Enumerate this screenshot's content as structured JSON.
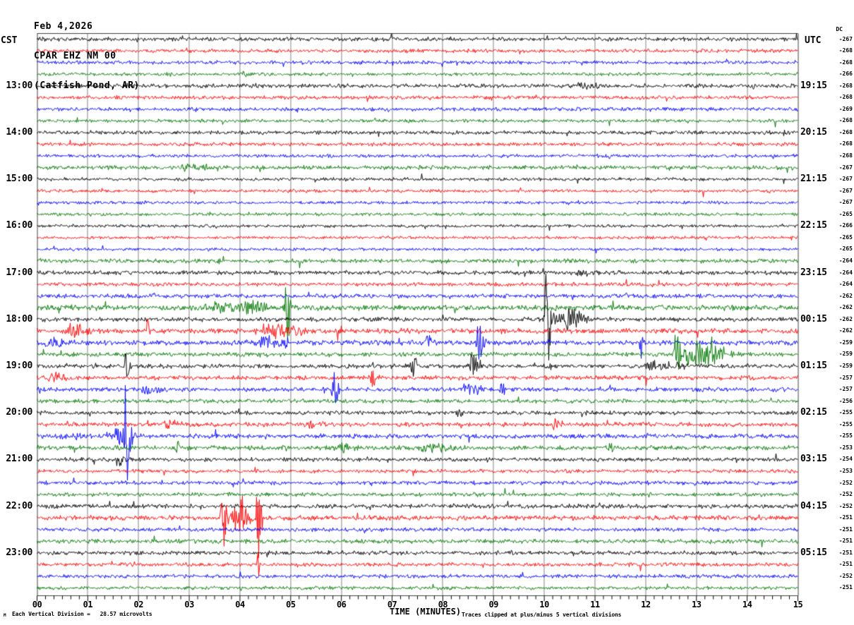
{
  "header": {
    "date": "Feb 4,2026",
    "station": "CPAR EHZ NM 00",
    "location": "(Catfish Pond, AR)"
  },
  "axes": {
    "left_header": "CST",
    "right_header": "UTC",
    "dc_header": "DC",
    "x_label": "TIME (MINUTES)",
    "x_ticks": [
      "00",
      "01",
      "02",
      "03",
      "04",
      "05",
      "06",
      "07",
      "08",
      "09",
      "10",
      "11",
      "12",
      "13",
      "14",
      "15"
    ]
  },
  "footer": {
    "scale_note": "Each Vertical Division =   28.57 microvolts",
    "clip_note": "Traces clipped at plus/minus 5 vertical divisions",
    "watermark": "M"
  },
  "chart_data": {
    "type": "line",
    "subtype": "helicorder-seismogram",
    "title": "CPAR EHZ NM 00 (Catfish Pond, AR) Feb 4,2026",
    "xlabel": "TIME (MINUTES)",
    "x_range": [
      0,
      15
    ],
    "minutes_per_trace": 15,
    "minor_ticks_per_minute": 6,
    "microvolts_per_division": 28.57,
    "clip_divisions": 5,
    "grid_color": "#808080",
    "border_color": "#404040",
    "colors": {
      "black": "#000000",
      "red": "#ff0000",
      "blue": "#0000ff",
      "green": "#007700"
    },
    "color_cycle": [
      "black",
      "red",
      "blue",
      "green"
    ],
    "rows": [
      {
        "color": "black",
        "cst": "",
        "utc": "",
        "dc": "-267",
        "noise": 2.4
      },
      {
        "color": "red",
        "cst": "",
        "utc": "",
        "dc": "-268",
        "noise": 2.2
      },
      {
        "color": "blue",
        "cst": "",
        "utc": "",
        "dc": "-268",
        "noise": 2.2
      },
      {
        "color": "green",
        "cst": "",
        "utc": "",
        "dc": "-266",
        "noise": 2.0
      },
      {
        "color": "black",
        "cst": "13:00",
        "utc": "19:15",
        "dc": "-268",
        "noise": 2.4
      },
      {
        "color": "red",
        "cst": "",
        "utc": "",
        "dc": "-268",
        "noise": 2.2
      },
      {
        "color": "blue",
        "cst": "",
        "utc": "",
        "dc": "-269",
        "noise": 2.2
      },
      {
        "color": "green",
        "cst": "",
        "utc": "",
        "dc": "-268",
        "noise": 2.0
      },
      {
        "color": "black",
        "cst": "14:00",
        "utc": "20:15",
        "dc": "-268",
        "noise": 2.3
      },
      {
        "color": "red",
        "cst": "",
        "utc": "",
        "dc": "-268",
        "noise": 2.2
      },
      {
        "color": "blue",
        "cst": "",
        "utc": "",
        "dc": "-268",
        "noise": 2.0
      },
      {
        "color": "green",
        "cst": "",
        "utc": "",
        "dc": "-267",
        "noise": 2.4
      },
      {
        "color": "black",
        "cst": "15:00",
        "utc": "21:15",
        "dc": "-267",
        "noise": 2.0
      },
      {
        "color": "red",
        "cst": "",
        "utc": "",
        "dc": "-267",
        "noise": 1.9
      },
      {
        "color": "blue",
        "cst": "",
        "utc": "",
        "dc": "-267",
        "noise": 1.8
      },
      {
        "color": "green",
        "cst": "",
        "utc": "",
        "dc": "-265",
        "noise": 1.8
      },
      {
        "color": "black",
        "cst": "16:00",
        "utc": "22:15",
        "dc": "-266",
        "noise": 1.9
      },
      {
        "color": "red",
        "cst": "",
        "utc": "",
        "dc": "-265",
        "noise": 1.8
      },
      {
        "color": "blue",
        "cst": "",
        "utc": "",
        "dc": "-265",
        "noise": 1.8
      },
      {
        "color": "green",
        "cst": "",
        "utc": "",
        "dc": "-264",
        "noise": 2.5
      },
      {
        "color": "black",
        "cst": "17:00",
        "utc": "23:15",
        "dc": "-264",
        "noise": 2.5
      },
      {
        "color": "red",
        "cst": "",
        "utc": "",
        "dc": "-264",
        "noise": 2.3
      },
      {
        "color": "blue",
        "cst": "",
        "utc": "",
        "dc": "-262",
        "noise": 2.5
      },
      {
        "color": "green",
        "cst": "",
        "utc": "",
        "dc": "-262",
        "noise": 3.3
      },
      {
        "color": "black",
        "cst": "18:00",
        "utc": "00:15",
        "dc": "-262",
        "noise": 2.6
      },
      {
        "color": "red",
        "cst": "",
        "utc": "",
        "dc": "-262",
        "noise": 3.0
      },
      {
        "color": "blue",
        "cst": "",
        "utc": "",
        "dc": "-259",
        "noise": 3.0
      },
      {
        "color": "green",
        "cst": "",
        "utc": "",
        "dc": "-259",
        "noise": 2.6
      },
      {
        "color": "black",
        "cst": "19:00",
        "utc": "01:15",
        "dc": "-259",
        "noise": 2.6
      },
      {
        "color": "red",
        "cst": "",
        "utc": "",
        "dc": "-257",
        "noise": 2.6
      },
      {
        "color": "blue",
        "cst": "",
        "utc": "",
        "dc": "-257",
        "noise": 2.6
      },
      {
        "color": "green",
        "cst": "",
        "utc": "",
        "dc": "-256",
        "noise": 2.4
      },
      {
        "color": "black",
        "cst": "20:00",
        "utc": "02:15",
        "dc": "-255",
        "noise": 2.4
      },
      {
        "color": "red",
        "cst": "",
        "utc": "",
        "dc": "-255",
        "noise": 2.6
      },
      {
        "color": "blue",
        "cst": "",
        "utc": "",
        "dc": "-255",
        "noise": 2.7
      },
      {
        "color": "green",
        "cst": "",
        "utc": "",
        "dc": "-253",
        "noise": 2.7
      },
      {
        "color": "black",
        "cst": "21:00",
        "utc": "03:15",
        "dc": "-254",
        "noise": 2.4
      },
      {
        "color": "red",
        "cst": "",
        "utc": "",
        "dc": "-253",
        "noise": 2.2
      },
      {
        "color": "blue",
        "cst": "",
        "utc": "",
        "dc": "-252",
        "noise": 2.3
      },
      {
        "color": "green",
        "cst": "",
        "utc": "",
        "dc": "-252",
        "noise": 2.3
      },
      {
        "color": "black",
        "cst": "22:00",
        "utc": "04:15",
        "dc": "-252",
        "noise": 2.6
      },
      {
        "color": "red",
        "cst": "",
        "utc": "",
        "dc": "-251",
        "noise": 2.8
      },
      {
        "color": "blue",
        "cst": "",
        "utc": "",
        "dc": "-251",
        "noise": 2.3
      },
      {
        "color": "green",
        "cst": "",
        "utc": "",
        "dc": "-251",
        "noise": 2.5
      },
      {
        "color": "black",
        "cst": "23:00",
        "utc": "05:15",
        "dc": "-251",
        "noise": 2.4
      },
      {
        "color": "red",
        "cst": "",
        "utc": "",
        "dc": "-251",
        "noise": 2.3
      },
      {
        "color": "blue",
        "cst": "",
        "utc": "",
        "dc": "-252",
        "noise": 2.2
      },
      {
        "color": "green",
        "cst": "",
        "utc": "",
        "dc": "-251",
        "noise": 2.1
      }
    ],
    "events": [
      {
        "row": 4,
        "t": 4.1,
        "w": 0.12,
        "a": 5
      },
      {
        "row": 5,
        "t": 10.75,
        "w": 0.3,
        "a": 6
      },
      {
        "row": 12,
        "t": 2.95,
        "w": 0.3,
        "a": 7
      },
      {
        "row": 12,
        "t": 3.4,
        "w": 0.18,
        "a": 6
      },
      {
        "row": 21,
        "t": 10.7,
        "w": 0.3,
        "a": 6
      },
      {
        "row": 24,
        "t": 3.5,
        "w": 0.4,
        "a": 9
      },
      {
        "row": 24,
        "t": 4.15,
        "w": 0.3,
        "a": 12
      },
      {
        "row": 24,
        "t": 4.3,
        "w": 0.18,
        "a": 10
      },
      {
        "row": 24,
        "t": 4.92,
        "w": 0.05,
        "a": 80
      },
      {
        "row": 25,
        "t": 10.05,
        "w": 0.09,
        "a": 80
      },
      {
        "row": 25,
        "t": 10.45,
        "w": 0.25,
        "a": 26
      },
      {
        "row": 25,
        "t": 10.62,
        "w": 0.12,
        "a": 16
      },
      {
        "row": 26,
        "t": 0.7,
        "w": 0.18,
        "a": 15
      },
      {
        "row": 26,
        "t": 2.17,
        "w": 0.03,
        "a": 24
      },
      {
        "row": 26,
        "t": 4.6,
        "w": 0.5,
        "a": 12
      },
      {
        "row": 26,
        "t": 5.95,
        "w": 0.07,
        "a": 14
      },
      {
        "row": 27,
        "t": 0.25,
        "w": 0.3,
        "a": 9
      },
      {
        "row": 27,
        "t": 4.5,
        "w": 0.35,
        "a": 11
      },
      {
        "row": 27,
        "t": 7.7,
        "w": 0.05,
        "a": 17
      },
      {
        "row": 27,
        "t": 8.7,
        "w": 0.07,
        "a": 40
      },
      {
        "row": 27,
        "t": 11.9,
        "w": 0.04,
        "a": 38
      },
      {
        "row": 28,
        "t": 12.6,
        "w": 0.07,
        "a": 46
      },
      {
        "row": 28,
        "t": 12.95,
        "w": 0.35,
        "a": 28
      },
      {
        "row": 28,
        "t": 13.35,
        "w": 0.18,
        "a": 16
      },
      {
        "row": 29,
        "t": 1.75,
        "w": 0.05,
        "a": 26
      },
      {
        "row": 29,
        "t": 7.4,
        "w": 0.07,
        "a": 20
      },
      {
        "row": 29,
        "t": 8.55,
        "w": 0.09,
        "a": 30
      },
      {
        "row": 29,
        "t": 10.1,
        "w": 0.04,
        "a": 16
      },
      {
        "row": 29,
        "t": 12.2,
        "w": 0.5,
        "a": 7
      },
      {
        "row": 30,
        "t": 0.3,
        "w": 0.22,
        "a": 9
      },
      {
        "row": 30,
        "t": 6.6,
        "w": 0.06,
        "a": 15
      },
      {
        "row": 31,
        "t": 2.2,
        "w": 0.3,
        "a": 7
      },
      {
        "row": 31,
        "t": 5.85,
        "w": 0.06,
        "a": 40
      },
      {
        "row": 31,
        "t": 8.5,
        "w": 0.22,
        "a": 11
      },
      {
        "row": 31,
        "t": 9.15,
        "w": 0.06,
        "a": 15
      },
      {
        "row": 33,
        "t": 8.3,
        "w": 0.07,
        "a": 12
      },
      {
        "row": 34,
        "t": 2.6,
        "w": 0.22,
        "a": 8
      },
      {
        "row": 34,
        "t": 5.4,
        "w": 0.18,
        "a": 9
      },
      {
        "row": 34,
        "t": 10.2,
        "w": 0.12,
        "a": 10
      },
      {
        "row": 35,
        "t": 0.55,
        "w": 0.25,
        "a": 8
      },
      {
        "row": 35,
        "t": 1.55,
        "w": 0.3,
        "a": 14
      },
      {
        "row": 35,
        "t": 1.75,
        "w": 0.08,
        "a": 82
      },
      {
        "row": 36,
        "t": 2.75,
        "w": 0.05,
        "a": 14
      },
      {
        "row": 36,
        "t": 6.05,
        "w": 0.22,
        "a": 9
      },
      {
        "row": 36,
        "t": 7.7,
        "w": 0.35,
        "a": 8
      },
      {
        "row": 36,
        "t": 11.3,
        "w": 0.07,
        "a": 11
      },
      {
        "row": 37,
        "t": 1.6,
        "w": 0.12,
        "a": 11
      },
      {
        "row": 42,
        "t": 3.65,
        "w": 0.09,
        "a": 48
      },
      {
        "row": 42,
        "t": 3.9,
        "w": 0.25,
        "a": 18
      },
      {
        "row": 42,
        "t": 4.05,
        "w": 0.09,
        "a": 42
      },
      {
        "row": 42,
        "t": 4.35,
        "w": 0.05,
        "a": 85
      },
      {
        "row": 46,
        "t": 4.35,
        "w": 0.035,
        "a": 26
      }
    ]
  }
}
